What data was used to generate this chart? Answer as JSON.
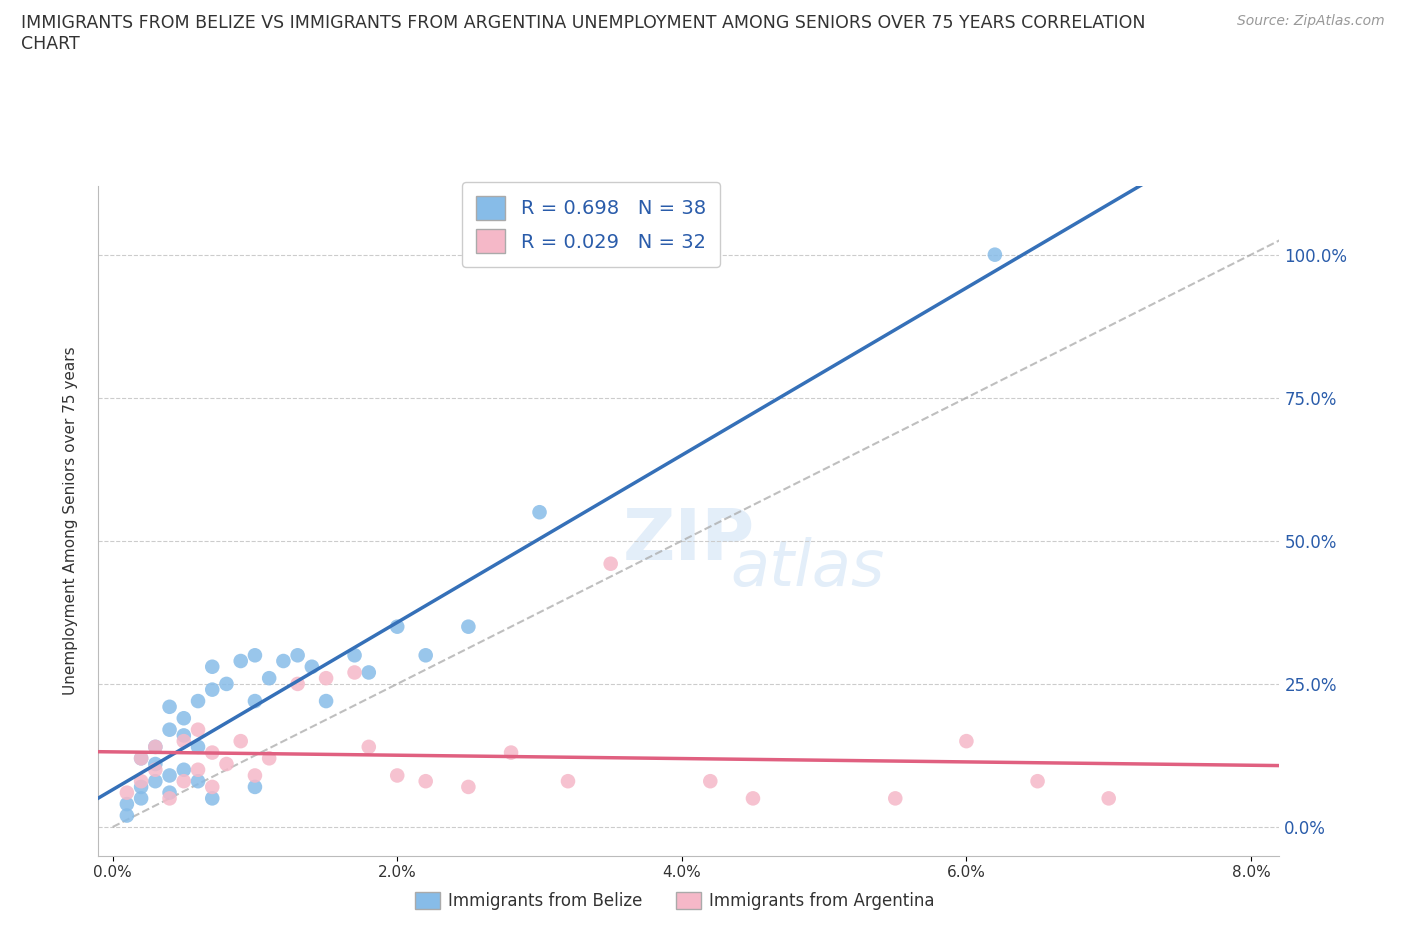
{
  "title": "IMMIGRANTS FROM BELIZE VS IMMIGRANTS FROM ARGENTINA UNEMPLOYMENT AMONG SENIORS OVER 75 YEARS CORRELATION\nCHART",
  "source": "Source: ZipAtlas.com",
  "xlabel_bottom": "Immigrants from Belize",
  "xlabel_bottom2": "Immigrants from Argentina",
  "ylabel": "Unemployment Among Seniors over 75 years",
  "xlim": [
    -0.001,
    0.082
  ],
  "ylim": [
    -0.05,
    1.12
  ],
  "yticks": [
    0.0,
    0.25,
    0.5,
    0.75,
    1.0
  ],
  "ytick_labels": [
    "0.0%",
    "25.0%",
    "50.0%",
    "75.0%",
    "100.0%"
  ],
  "xticks": [
    0.0,
    0.02,
    0.04,
    0.06,
    0.08
  ],
  "xtick_labels": [
    "0.0%",
    "2.0%",
    "4.0%",
    "6.0%",
    "8.0%"
  ],
  "belize_color": "#87bce8",
  "argentina_color": "#f5b8c8",
  "belize_line_color": "#3570b8",
  "argentina_line_color": "#e06080",
  "R_belize": 0.698,
  "N_belize": 38,
  "R_argentina": 0.029,
  "N_argentina": 32,
  "legend_text_color": "#2a5caa",
  "belize_x": [
    0.001,
    0.001,
    0.002,
    0.002,
    0.002,
    0.003,
    0.003,
    0.003,
    0.004,
    0.004,
    0.004,
    0.004,
    0.005,
    0.005,
    0.005,
    0.006,
    0.006,
    0.006,
    0.007,
    0.007,
    0.007,
    0.008,
    0.009,
    0.01,
    0.01,
    0.01,
    0.011,
    0.012,
    0.013,
    0.014,
    0.015,
    0.017,
    0.018,
    0.02,
    0.022,
    0.025,
    0.03,
    0.062
  ],
  "belize_y": [
    0.02,
    0.04,
    0.05,
    0.07,
    0.12,
    0.08,
    0.11,
    0.14,
    0.06,
    0.09,
    0.17,
    0.21,
    0.1,
    0.16,
    0.19,
    0.22,
    0.14,
    0.08,
    0.24,
    0.28,
    0.05,
    0.25,
    0.29,
    0.3,
    0.22,
    0.07,
    0.26,
    0.29,
    0.3,
    0.28,
    0.22,
    0.3,
    0.27,
    0.35,
    0.3,
    0.35,
    0.55,
    1.0
  ],
  "argentina_x": [
    0.001,
    0.002,
    0.002,
    0.003,
    0.003,
    0.004,
    0.005,
    0.005,
    0.006,
    0.006,
    0.007,
    0.007,
    0.008,
    0.009,
    0.01,
    0.011,
    0.013,
    0.015,
    0.017,
    0.018,
    0.02,
    0.022,
    0.025,
    0.028,
    0.032,
    0.035,
    0.042,
    0.045,
    0.055,
    0.06,
    0.065,
    0.07
  ],
  "argentina_y": [
    0.06,
    0.08,
    0.12,
    0.1,
    0.14,
    0.05,
    0.15,
    0.08,
    0.17,
    0.1,
    0.13,
    0.07,
    0.11,
    0.15,
    0.09,
    0.12,
    0.25,
    0.26,
    0.27,
    0.14,
    0.09,
    0.08,
    0.07,
    0.13,
    0.08,
    0.46,
    0.08,
    0.05,
    0.05,
    0.15,
    0.08,
    0.05
  ],
  "watermark_top": "ZIP",
  "watermark_bot": "atlas",
  "background_color": "#ffffff",
  "grid_color": "#cccccc"
}
